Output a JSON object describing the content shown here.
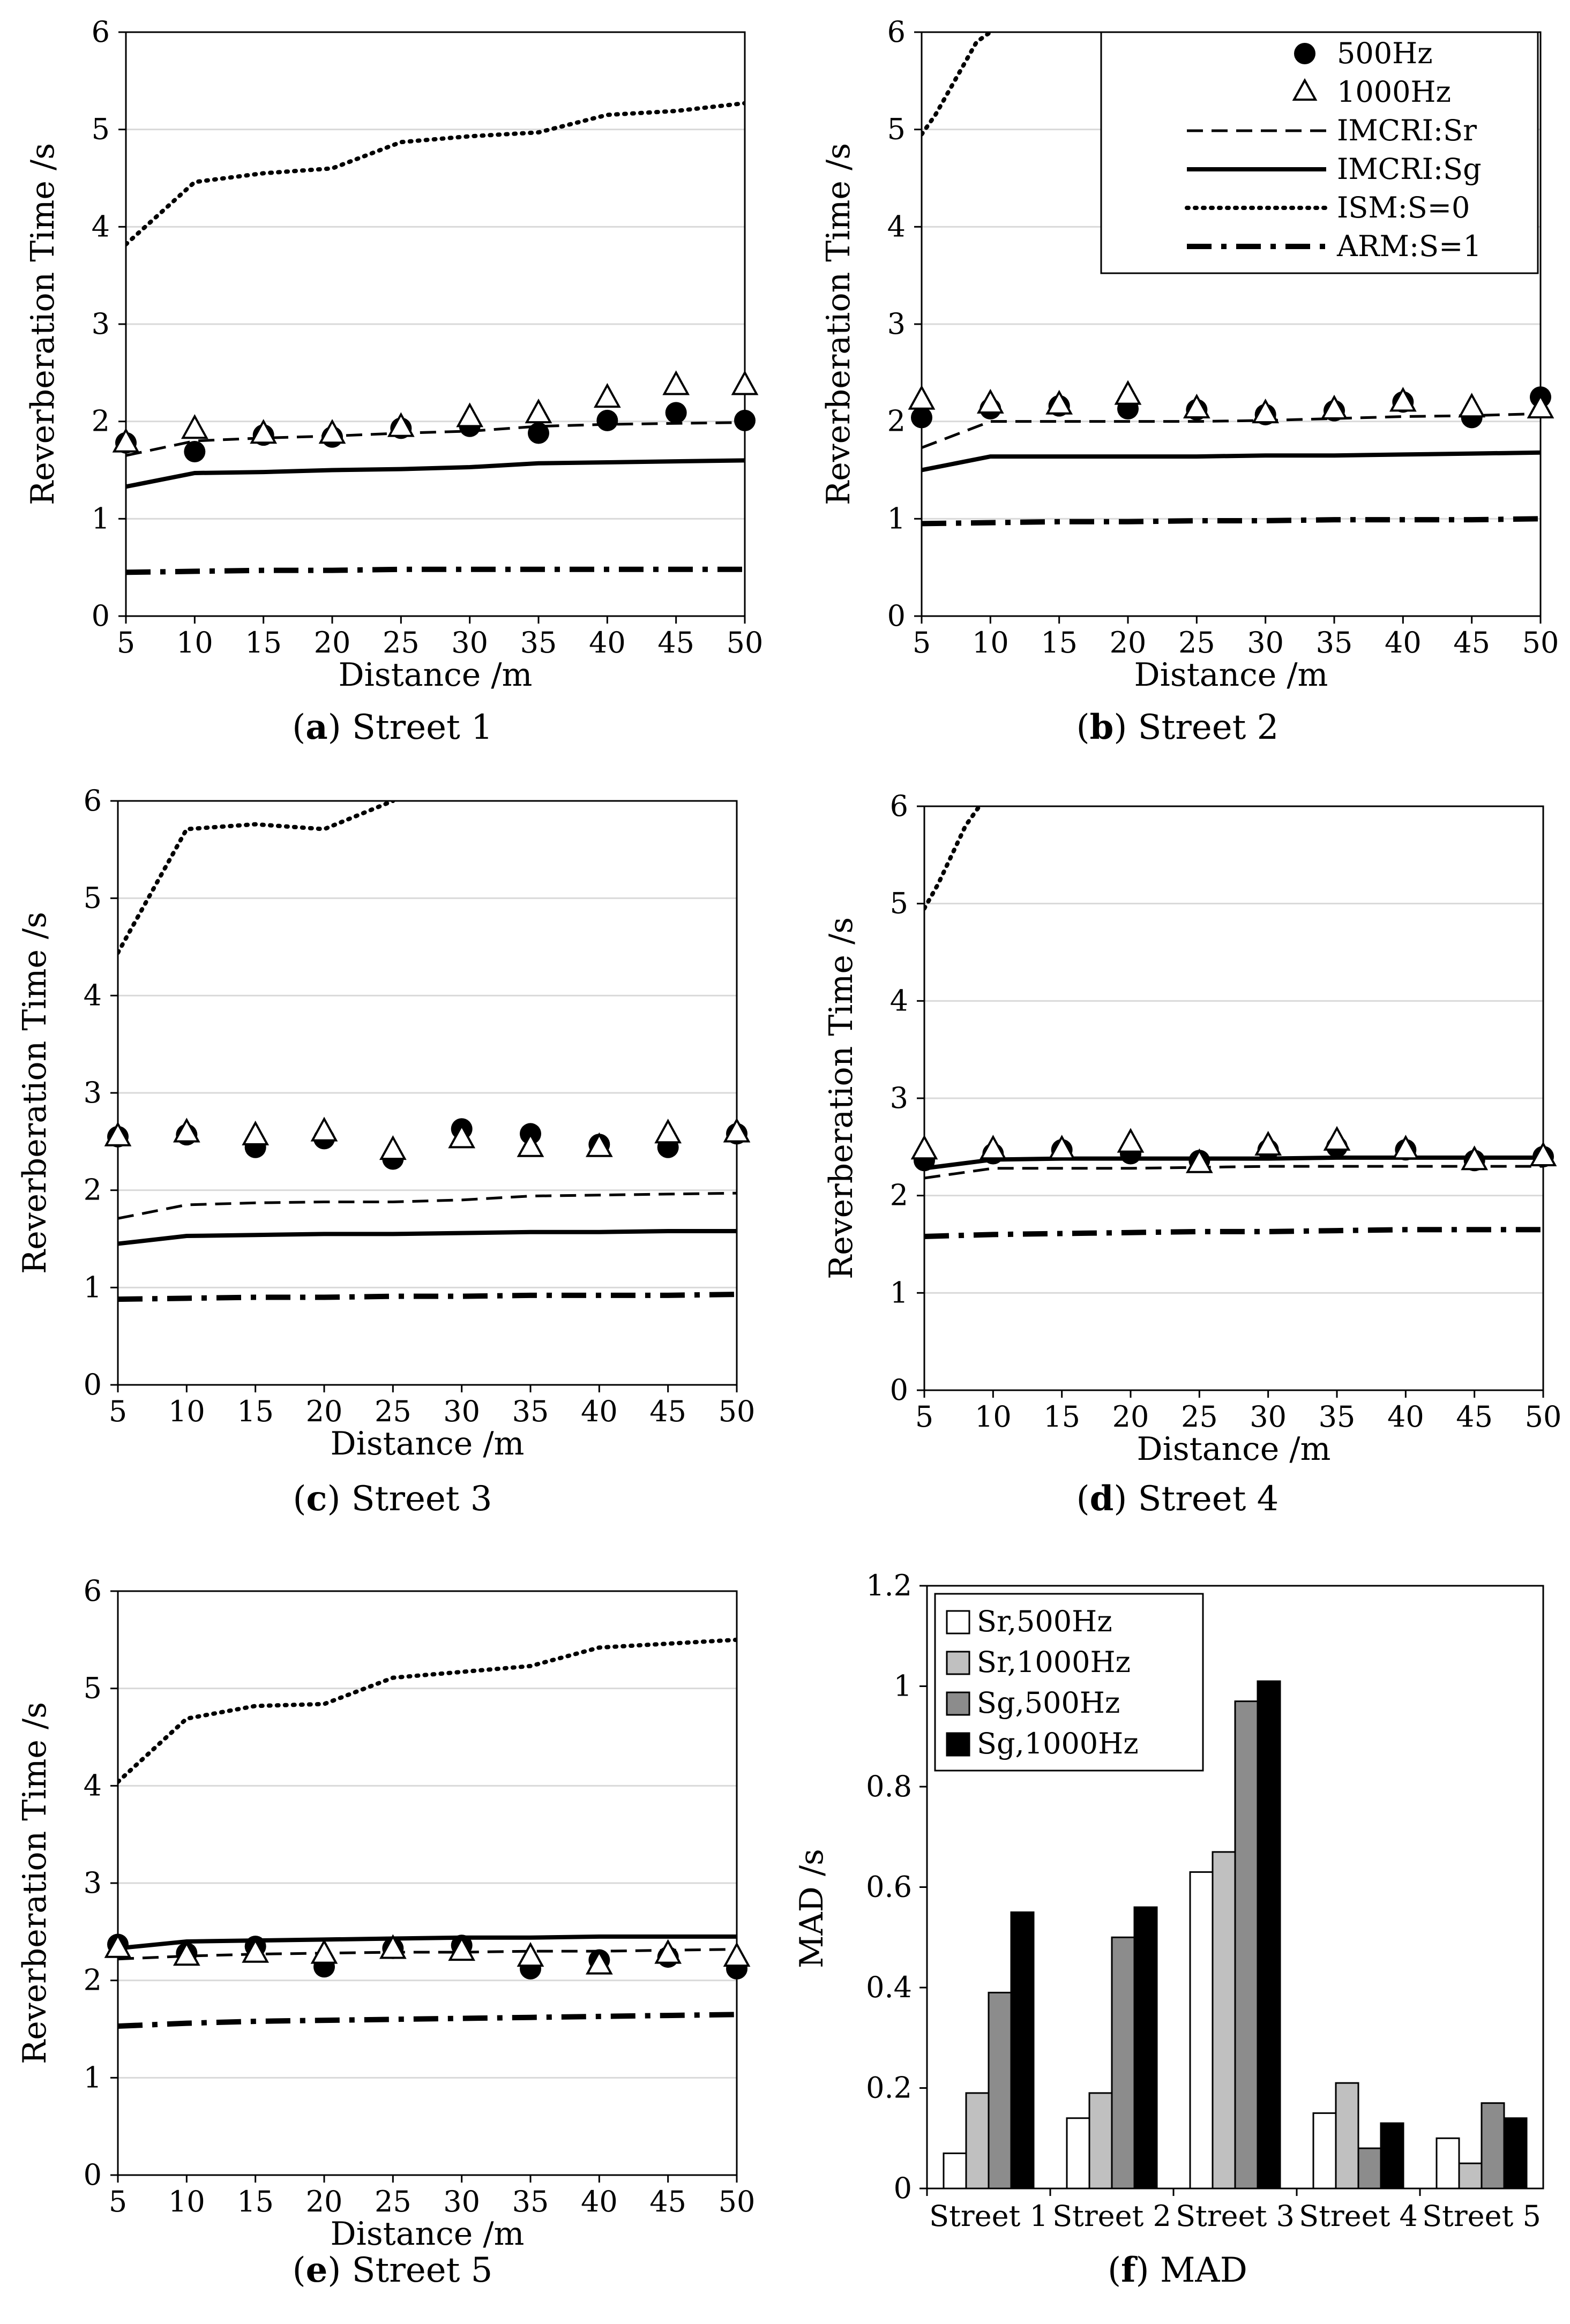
{
  "legend_line": {
    "measured": [
      {
        "label": "500Hz",
        "marker": "filled-circle"
      },
      {
        "label": "1000Hz",
        "marker": "open-triangle"
      }
    ],
    "models": [
      {
        "label": "IMCRI:Sr",
        "style": "dashed"
      },
      {
        "label": "IMCRI:Sg",
        "style": "solid"
      },
      {
        "label": "ISM:S=0",
        "style": "dotted"
      },
      {
        "label": "ARM:S=1",
        "style": "dash-dot"
      }
    ]
  },
  "legend_bar": [
    {
      "label": "Sr,500Hz",
      "color": "#ffffff"
    },
    {
      "label": "Sr,1000Hz",
      "color": "#c0c0c0"
    },
    {
      "label": "Sg,500Hz",
      "color": "#8c8c8c"
    },
    {
      "label": "Sg,1000Hz",
      "color": "#000000"
    }
  ],
  "chart_data": [
    {
      "id": "a",
      "type": "line",
      "caption_letter": "a",
      "caption_text": "Street 1",
      "xlabel": "Distance /m",
      "ylabel": "Reverberation Time /s",
      "xlim": [
        5,
        50
      ],
      "ylim": [
        0,
        6
      ],
      "xticks": [
        5,
        10,
        15,
        20,
        25,
        30,
        35,
        40,
        45,
        50
      ],
      "yticks": [
        0,
        1,
        2,
        3,
        4,
        5,
        6
      ],
      "measured_500": {
        "x": [
          5,
          10,
          15,
          20,
          25,
          30,
          35,
          40,
          45,
          50
        ],
        "y": [
          1.78,
          1.69,
          1.86,
          1.84,
          1.93,
          1.95,
          1.88,
          2.01,
          2.09,
          2.01
        ]
      },
      "measured_1000": {
        "x": [
          5,
          10,
          15,
          20,
          25,
          30,
          35,
          40,
          45,
          50
        ],
        "y": [
          1.78,
          1.92,
          1.87,
          1.87,
          1.94,
          2.04,
          2.08,
          2.24,
          2.37,
          2.37
        ]
      },
      "imcri_sr": {
        "x": [
          5,
          10,
          15,
          20,
          25,
          30,
          35,
          40,
          45,
          50
        ],
        "y": [
          1.65,
          1.8,
          1.83,
          1.85,
          1.88,
          1.9,
          1.95,
          1.97,
          1.98,
          1.99
        ]
      },
      "imcri_sg": {
        "x": [
          5,
          10,
          15,
          20,
          25,
          30,
          35,
          40,
          45,
          50
        ],
        "y": [
          1.33,
          1.47,
          1.48,
          1.5,
          1.51,
          1.53,
          1.57,
          1.58,
          1.59,
          1.6
        ]
      },
      "ism_s0": {
        "x": [
          5,
          10,
          15,
          20,
          25,
          30,
          35,
          40,
          45,
          50
        ],
        "y": [
          3.82,
          4.46,
          4.55,
          4.6,
          4.87,
          4.93,
          4.97,
          5.15,
          5.19,
          5.27
        ]
      },
      "arm_s1": {
        "x": [
          5,
          10,
          15,
          20,
          25,
          30,
          35,
          40,
          45,
          50
        ],
        "y": [
          0.45,
          0.46,
          0.47,
          0.47,
          0.48,
          0.48,
          0.48,
          0.48,
          0.48,
          0.48
        ]
      },
      "show_legend": false
    },
    {
      "id": "b",
      "type": "line",
      "caption_letter": "b",
      "caption_text": "Street 2",
      "xlabel": "Distance /m",
      "ylabel": "Reverberation Time /s",
      "xlim": [
        5,
        50
      ],
      "ylim": [
        0,
        6
      ],
      "xticks": [
        5,
        10,
        15,
        20,
        25,
        30,
        35,
        40,
        45,
        50
      ],
      "yticks": [
        0,
        1,
        2,
        3,
        4,
        5,
        6
      ],
      "measured_500": {
        "x": [
          5,
          10,
          15,
          20,
          25,
          30,
          35,
          40,
          45,
          50
        ],
        "y": [
          2.04,
          2.13,
          2.16,
          2.13,
          2.12,
          2.07,
          2.11,
          2.2,
          2.04,
          2.25
        ]
      },
      "measured_1000": {
        "x": [
          5,
          10,
          15,
          20,
          25,
          30,
          35,
          40,
          45,
          50
        ],
        "y": [
          2.22,
          2.18,
          2.17,
          2.27,
          2.13,
          2.08,
          2.12,
          2.2,
          2.14,
          2.13
        ]
      },
      "imcri_sr": {
        "x": [
          5,
          10,
          15,
          20,
          25,
          30,
          35,
          40,
          45,
          50
        ],
        "y": [
          1.73,
          2.0,
          2.0,
          2.0,
          2.0,
          2.01,
          2.03,
          2.05,
          2.06,
          2.08
        ]
      },
      "imcri_sg": {
        "x": [
          5,
          10,
          15,
          20,
          25,
          30,
          35,
          40,
          45,
          50
        ],
        "y": [
          1.5,
          1.64,
          1.64,
          1.64,
          1.64,
          1.65,
          1.65,
          1.66,
          1.67,
          1.68
        ]
      },
      "ism_s0": {
        "x": [
          5,
          6,
          7,
          8,
          9,
          10
        ],
        "y": [
          4.95,
          5.15,
          5.4,
          5.65,
          5.9,
          6.0
        ]
      },
      "arm_s1": {
        "x": [
          5,
          10,
          15,
          20,
          25,
          30,
          35,
          40,
          45,
          50
        ],
        "y": [
          0.95,
          0.96,
          0.97,
          0.97,
          0.98,
          0.98,
          0.99,
          0.99,
          0.99,
          1.0
        ]
      },
      "show_legend": true
    },
    {
      "id": "c",
      "type": "line",
      "caption_letter": "c",
      "caption_text": "Street 3",
      "xlabel": "Distance /m",
      "ylabel": "Reverberation Time /s",
      "xlim": [
        5,
        50
      ],
      "ylim": [
        0,
        6
      ],
      "xticks": [
        5,
        10,
        15,
        20,
        25,
        30,
        35,
        40,
        45,
        50
      ],
      "yticks": [
        0,
        1,
        2,
        3,
        4,
        5,
        6
      ],
      "measured_500": {
        "x": [
          5,
          10,
          15,
          20,
          25,
          30,
          35,
          40,
          45,
          50
        ],
        "y": [
          2.55,
          2.57,
          2.44,
          2.53,
          2.32,
          2.63,
          2.58,
          2.47,
          2.44,
          2.58
        ]
      },
      "measured_1000": {
        "x": [
          5,
          10,
          15,
          20,
          25,
          30,
          35,
          40,
          45,
          50
        ],
        "y": [
          2.55,
          2.59,
          2.56,
          2.6,
          2.41,
          2.53,
          2.44,
          2.44,
          2.58,
          2.59
        ]
      },
      "imcri_sr": {
        "x": [
          5,
          10,
          15,
          20,
          25,
          30,
          35,
          40,
          45,
          50
        ],
        "y": [
          1.71,
          1.85,
          1.87,
          1.88,
          1.88,
          1.9,
          1.94,
          1.95,
          1.96,
          1.97
        ]
      },
      "imcri_sg": {
        "x": [
          5,
          10,
          15,
          20,
          25,
          30,
          35,
          40,
          45,
          50
        ],
        "y": [
          1.45,
          1.53,
          1.54,
          1.55,
          1.55,
          1.56,
          1.57,
          1.57,
          1.58,
          1.58
        ]
      },
      "ism_s0": {
        "x": [
          5,
          10,
          15,
          20,
          25
        ],
        "y": [
          4.44,
          5.71,
          5.76,
          5.71,
          6.0
        ]
      },
      "arm_s1": {
        "x": [
          5,
          10,
          15,
          20,
          25,
          30,
          35,
          40,
          45,
          50
        ],
        "y": [
          0.88,
          0.89,
          0.9,
          0.9,
          0.91,
          0.91,
          0.92,
          0.92,
          0.92,
          0.93
        ]
      },
      "show_legend": false
    },
    {
      "id": "d",
      "type": "line",
      "caption_letter": "d",
      "caption_text": "Street 4",
      "xlabel": "Distance /m",
      "ylabel": "Reverberation Time /s",
      "xlim": [
        5,
        50
      ],
      "ylim": [
        0,
        6
      ],
      "xticks": [
        5,
        10,
        15,
        20,
        25,
        30,
        35,
        40,
        45,
        50
      ],
      "yticks": [
        0,
        1,
        2,
        3,
        4,
        5,
        6
      ],
      "measured_500": {
        "x": [
          5,
          10,
          15,
          20,
          25,
          30,
          35,
          40,
          45,
          50
        ],
        "y": [
          2.36,
          2.43,
          2.47,
          2.43,
          2.36,
          2.47,
          2.5,
          2.47,
          2.36,
          2.4
        ]
      },
      "measured_1000": {
        "x": [
          5,
          10,
          15,
          20,
          25,
          30,
          35,
          40,
          45,
          50
        ],
        "y": [
          2.47,
          2.47,
          2.47,
          2.54,
          2.33,
          2.51,
          2.56,
          2.47,
          2.36,
          2.4
        ]
      },
      "imcri_sr": {
        "x": [
          5,
          10,
          15,
          20,
          25,
          30,
          35,
          40,
          45,
          50
        ],
        "y": [
          2.18,
          2.28,
          2.28,
          2.28,
          2.29,
          2.3,
          2.3,
          2.3,
          2.3,
          2.3
        ]
      },
      "imcri_sg": {
        "x": [
          5,
          10,
          15,
          20,
          25,
          30,
          35,
          40,
          45,
          50
        ],
        "y": [
          2.28,
          2.37,
          2.38,
          2.38,
          2.38,
          2.38,
          2.39,
          2.39,
          2.39,
          2.39
        ]
      },
      "ism_s0": {
        "x": [
          5,
          6,
          7,
          8,
          9
        ],
        "y": [
          4.95,
          5.2,
          5.5,
          5.8,
          6.0
        ]
      },
      "arm_s1": {
        "x": [
          5,
          10,
          15,
          20,
          25,
          30,
          35,
          40,
          45,
          50
        ],
        "y": [
          1.58,
          1.6,
          1.61,
          1.62,
          1.63,
          1.63,
          1.64,
          1.65,
          1.65,
          1.65
        ]
      },
      "show_legend": false
    },
    {
      "id": "e",
      "type": "line",
      "caption_letter": "e",
      "caption_text": "Street 5",
      "xlabel": "Distance /m",
      "ylabel": "Reverberation Time /s",
      "xlim": [
        5,
        50
      ],
      "ylim": [
        0,
        6
      ],
      "xticks": [
        5,
        10,
        15,
        20,
        25,
        30,
        35,
        40,
        45,
        50
      ],
      "yticks": [
        0,
        1,
        2,
        3,
        4,
        5,
        6
      ],
      "measured_500": {
        "x": [
          5,
          10,
          15,
          20,
          25,
          30,
          35,
          40,
          45,
          50
        ],
        "y": [
          2.37,
          2.28,
          2.35,
          2.14,
          2.33,
          2.36,
          2.12,
          2.21,
          2.24,
          2.12
        ]
      },
      "measured_1000": {
        "x": [
          5,
          10,
          15,
          20,
          25,
          30,
          35,
          40,
          45,
          50
        ],
        "y": [
          2.33,
          2.25,
          2.28,
          2.27,
          2.32,
          2.3,
          2.24,
          2.16,
          2.27,
          2.24
        ]
      },
      "imcri_sr": {
        "x": [
          5,
          10,
          15,
          20,
          25,
          30,
          35,
          40,
          45,
          50
        ],
        "y": [
          2.22,
          2.25,
          2.27,
          2.28,
          2.29,
          2.29,
          2.3,
          2.3,
          2.31,
          2.32
        ]
      },
      "imcri_sg": {
        "x": [
          5,
          10,
          15,
          20,
          25,
          30,
          35,
          40,
          45,
          50
        ],
        "y": [
          2.33,
          2.4,
          2.41,
          2.42,
          2.43,
          2.44,
          2.44,
          2.45,
          2.45,
          2.45
        ]
      },
      "ism_s0": {
        "x": [
          5,
          10,
          15,
          20,
          25,
          30,
          35,
          40,
          45,
          50
        ],
        "y": [
          4.04,
          4.69,
          4.82,
          4.84,
          5.11,
          5.17,
          5.23,
          5.42,
          5.46,
          5.5
        ]
      },
      "arm_s1": {
        "x": [
          5,
          10,
          15,
          20,
          25,
          30,
          35,
          40,
          45,
          50
        ],
        "y": [
          1.53,
          1.56,
          1.58,
          1.59,
          1.6,
          1.61,
          1.62,
          1.63,
          1.64,
          1.65
        ]
      },
      "show_legend": false
    },
    {
      "id": "f",
      "type": "bar",
      "caption_letter": "f",
      "caption_text": "MAD",
      "xlabel": "",
      "ylabel": "MAD  /s",
      "ylim": [
        0,
        1.2
      ],
      "yticks": [
        0,
        0.2,
        0.4,
        0.6,
        0.8,
        1,
        1.2
      ],
      "categories": [
        "Street 1",
        "Street 2",
        "Street 3",
        "Street 4",
        "Street 5"
      ],
      "series": [
        {
          "name": "Sr,500Hz",
          "color": "#ffffff",
          "values": [
            0.07,
            0.14,
            0.63,
            0.15,
            0.1
          ]
        },
        {
          "name": "Sr,1000Hz",
          "color": "#c0c0c0",
          "values": [
            0.19,
            0.19,
            0.67,
            0.21,
            0.05
          ]
        },
        {
          "name": "Sg,500Hz",
          "color": "#8c8c8c",
          "values": [
            0.39,
            0.5,
            0.97,
            0.08,
            0.17
          ]
        },
        {
          "name": "Sg,1000Hz",
          "color": "#000000",
          "values": [
            0.55,
            0.56,
            1.01,
            0.13,
            0.14
          ]
        }
      ]
    }
  ]
}
